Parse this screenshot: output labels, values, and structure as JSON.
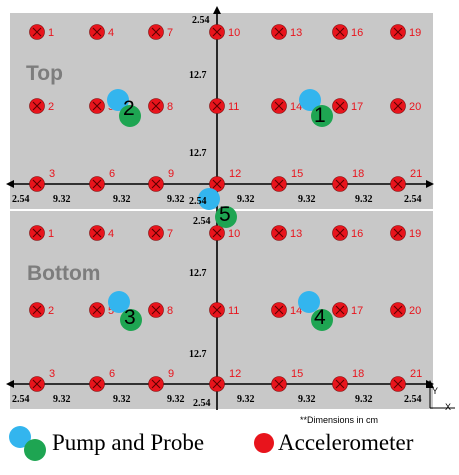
{
  "panels": [
    {
      "label": "Top",
      "pairs": [
        {
          "num": "2"
        },
        {
          "num": "1"
        }
      ]
    },
    {
      "label": "Bottom",
      "pairs": [
        {
          "num": "3"
        },
        {
          "num": "4"
        }
      ]
    }
  ],
  "center_pair": {
    "num": "5"
  },
  "accelerometer_numbers": [
    [
      "1",
      "4",
      "7",
      "10",
      "13",
      "16",
      "19"
    ],
    [
      "2",
      "5",
      "8",
      "11",
      "14",
      "17",
      "20"
    ],
    [
      "3",
      "6",
      "9",
      "12",
      "15",
      "18",
      "21"
    ]
  ],
  "dimensions": {
    "vertical": "12.7",
    "edge": "2.54",
    "spacing": "9.32"
  },
  "axes": {
    "x": "X",
    "y": "Y"
  },
  "footnote": "**Dimensions in cm",
  "legend": {
    "pump_probe": "Pump and Probe",
    "accelerometer": "Accelerometer"
  },
  "colors": {
    "panel": "#c8c8c8",
    "accelerometer": "#e8141c",
    "accel_label": "#e8141c",
    "pump": "#33b5ee",
    "probe": "#1ea552",
    "panel_label": "#7d7d7d"
  }
}
